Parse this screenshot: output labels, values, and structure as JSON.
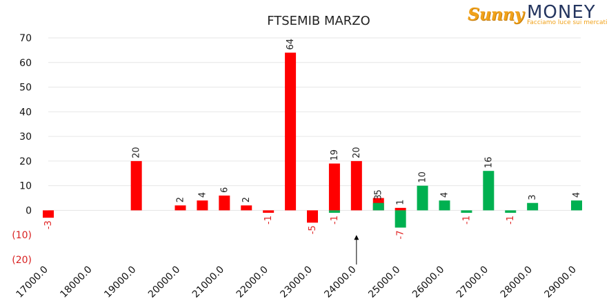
{
  "logo": {
    "wordmark_left": "Sunny",
    "wordmark_right": "MONEY",
    "tagline": "Facciamo luce sui mercati"
  },
  "colors": {
    "red_series": "#ff0000",
    "green_series": "#00b050",
    "negative_label": "#e02020",
    "gridline": "#e6e6e6"
  },
  "chart_data": {
    "type": "bar",
    "title": "FTSEMIB MARZO",
    "xlabel": "",
    "ylabel": "",
    "ylim": [
      -20,
      70
    ],
    "yticks": [
      70,
      60,
      50,
      40,
      30,
      20,
      10,
      0,
      -10,
      -20
    ],
    "ytick_labels": [
      "70",
      "60",
      "50",
      "40",
      "30",
      "20",
      "10",
      "0",
      "(10)",
      "(20)"
    ],
    "xlim": [
      17000,
      29000
    ],
    "xticks": [
      17000,
      18000,
      19000,
      20000,
      21000,
      22000,
      23000,
      24000,
      25000,
      26000,
      27000,
      28000,
      29000
    ],
    "xtick_labels": [
      "17000.0",
      "18000.0",
      "19000.0",
      "20000.0",
      "21000.0",
      "22000.0",
      "23000.0",
      "24000.0",
      "25000.0",
      "26000.0",
      "27000.0",
      "28000.0",
      "29000.0"
    ],
    "grid": true,
    "legend": "none",
    "annotations": [
      {
        "type": "arrow",
        "x": 24000,
        "from_y": -22,
        "to_y": -10
      }
    ],
    "series": [
      {
        "color": "#ff0000",
        "points": [
          {
            "x": 17000,
            "y": -3
          },
          {
            "x": 19000,
            "y": 20
          },
          {
            "x": 20000,
            "y": 2
          },
          {
            "x": 20500,
            "y": 4
          },
          {
            "x": 21000,
            "y": 6
          },
          {
            "x": 21500,
            "y": 2
          },
          {
            "x": 22000,
            "y": -1
          },
          {
            "x": 22500,
            "y": 64
          },
          {
            "x": 23000,
            "y": -5
          },
          {
            "x": 23500,
            "y": 19
          },
          {
            "x": 24000,
            "y": 20
          },
          {
            "x": 24500,
            "y": 5
          },
          {
            "x": 25000,
            "y": 1
          }
        ]
      },
      {
        "color": "#00b050",
        "points": [
          {
            "x": 23500,
            "y": -1
          },
          {
            "x": 24500,
            "y": 3
          },
          {
            "x": 25000,
            "y": -7
          },
          {
            "x": 25500,
            "y": 10
          },
          {
            "x": 26000,
            "y": 4
          },
          {
            "x": 26500,
            "y": -1
          },
          {
            "x": 27000,
            "y": 16
          },
          {
            "x": 27500,
            "y": -1
          },
          {
            "x": 28000,
            "y": 3
          },
          {
            "x": 29000,
            "y": 4
          }
        ]
      }
    ]
  }
}
